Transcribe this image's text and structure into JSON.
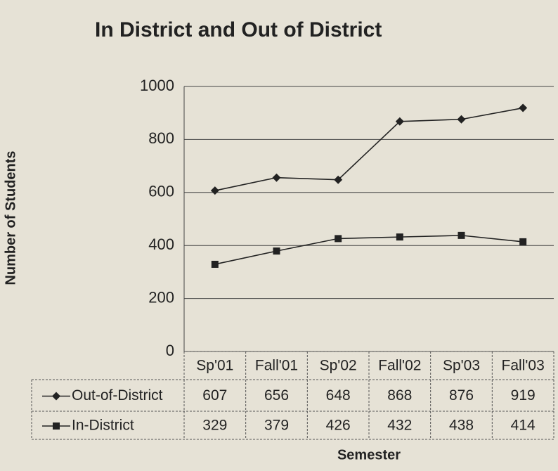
{
  "chart_data": {
    "type": "line",
    "title": "In District and Out of District",
    "y_label": "Number of Students",
    "x_label": "Semester",
    "categories": [
      "Sp'01",
      "Fall'01",
      "Sp'02",
      "Fall'02",
      "Sp'03",
      "Fall'03"
    ],
    "series": [
      {
        "name": "Out-of-District",
        "color": "#222222",
        "marker": "diamond",
        "values": [
          607,
          656,
          648,
          868,
          876,
          919
        ]
      },
      {
        "name": "In-District",
        "color": "#222222",
        "marker": "square",
        "values": [
          329,
          379,
          426,
          432,
          438,
          414
        ]
      }
    ],
    "ylim": [
      0,
      1000
    ],
    "yticks": [
      0,
      200,
      400,
      600,
      800,
      1000
    ],
    "grid": true
  }
}
